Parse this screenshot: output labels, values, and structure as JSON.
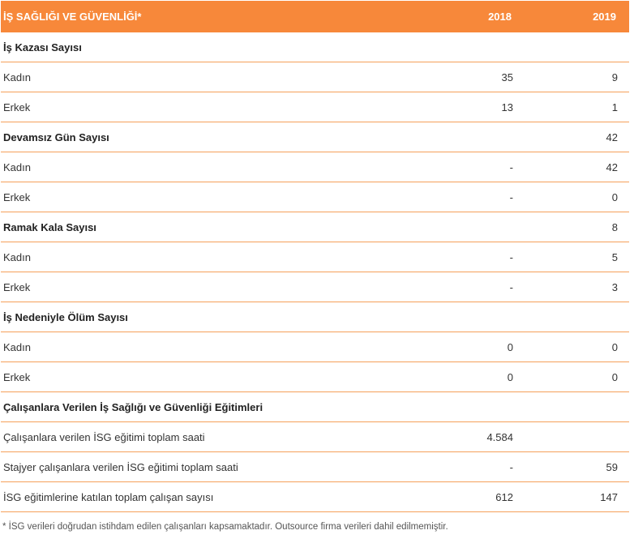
{
  "header": {
    "title": "İŞ SAĞLIĞI VE GÜVENLİĞİ*",
    "col_2018": "2018",
    "col_2019": "2019"
  },
  "rows": [
    {
      "type": "section",
      "label": "İş Kazası Sayısı",
      "v2018": "",
      "v2019": ""
    },
    {
      "type": "data",
      "label": "Kadın",
      "v2018": "35",
      "v2019": "9"
    },
    {
      "type": "data",
      "label": "Erkek",
      "v2018": "13",
      "v2019": "1"
    },
    {
      "type": "section",
      "label": "Devamsız Gün Sayısı",
      "v2018": "",
      "v2019": "42"
    },
    {
      "type": "data",
      "label": "Kadın",
      "v2018": "-",
      "v2019": "42"
    },
    {
      "type": "data",
      "label": "Erkek",
      "v2018": "-",
      "v2019": "0"
    },
    {
      "type": "section",
      "label": "Ramak Kala Sayısı",
      "v2018": "",
      "v2019": "8"
    },
    {
      "type": "data",
      "label": "Kadın",
      "v2018": "-",
      "v2019": "5"
    },
    {
      "type": "data",
      "label": "Erkek",
      "v2018": "-",
      "v2019": "3"
    },
    {
      "type": "section",
      "label": "İş Nedeniyle Ölüm Sayısı",
      "v2018": "",
      "v2019": ""
    },
    {
      "type": "data",
      "label": "Kadın",
      "v2018": "0",
      "v2019": "0"
    },
    {
      "type": "data",
      "label": "Erkek",
      "v2018": "0",
      "v2019": "0"
    },
    {
      "type": "section",
      "label": "Çalışanlara Verilen İş Sağlığı ve Güvenliği Eğitimleri",
      "v2018": "",
      "v2019": ""
    },
    {
      "type": "data",
      "label": "Çalışanlara verilen İSG eğitimi toplam saati",
      "v2018": "4.584",
      "v2019": ""
    },
    {
      "type": "data",
      "label": "Stajyer çalışanlara verilen İSG eğitimi toplam saati",
      "v2018": "-",
      "v2019": "59"
    },
    {
      "type": "data",
      "label": "İSG eğitimlerine katılan toplam çalışan sayısı",
      "v2018": "612",
      "v2019": "147"
    }
  ],
  "footnote": "* İSG verileri doğrudan istihdam edilen çalışanları kapsamaktadır. Outsource firma verileri dahil edilmemiştir."
}
